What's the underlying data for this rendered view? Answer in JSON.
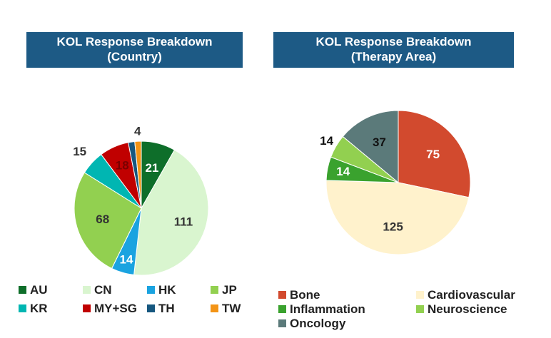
{
  "chart_data": [
    {
      "type": "pie",
      "title_lines": [
        "KOL Response Breakdown",
        "(Country)"
      ],
      "categories": [
        "AU",
        "CN",
        "HK",
        "JP",
        "KR",
        "MY+SG",
        "TH",
        "TW"
      ],
      "values": [
        21,
        111,
        14,
        68,
        15,
        18,
        4,
        4
      ],
      "data_labels": [
        "21",
        "111",
        "14",
        "68",
        "15",
        "18",
        "",
        "4"
      ],
      "colors": [
        "#0e6e2a",
        "#d9f5cf",
        "#1aa3e0",
        "#92d050",
        "#00b6b2",
        "#c00000",
        "#16577f",
        "#f39416"
      ],
      "legend_position": "bottom"
    },
    {
      "type": "pie",
      "title_lines": [
        "KOL Response Breakdown",
        "(Therapy Area)"
      ],
      "categories": [
        "Bone",
        "Cardiovascular",
        "Inflammation",
        "Neuroscience",
        "Oncology"
      ],
      "values": [
        75,
        125,
        14,
        14,
        37
      ],
      "data_labels": [
        "75",
        "125",
        "14",
        "14",
        "37"
      ],
      "colors": [
        "#d24a2e",
        "#fff2cc",
        "#3aa22e",
        "#92d050",
        "#5b7a7a"
      ],
      "legend_position": "bottom"
    }
  ]
}
